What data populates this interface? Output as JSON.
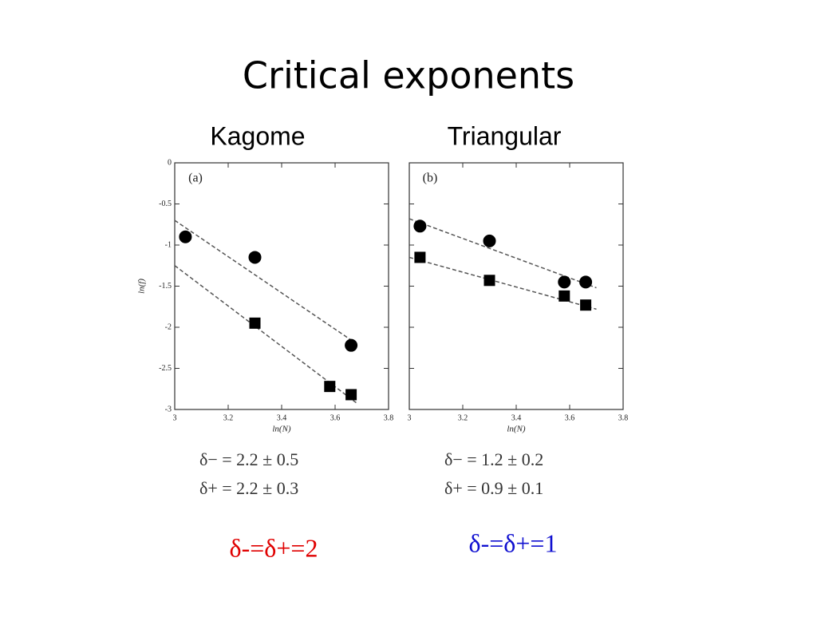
{
  "title": "Critical exponents",
  "chart_data": [
    {
      "type": "scatter",
      "title": "Kagome",
      "panel_label": "(a)",
      "xlabel": "ln(N)",
      "ylabel": "ln(f)",
      "xlim": [
        3,
        3.8
      ],
      "xticks": [
        3,
        3.2,
        3.4,
        3.6,
        3.8
      ],
      "ylim": [
        -3,
        0
      ],
      "yticks": [
        -3,
        -2.5,
        -2,
        -1.5,
        -1,
        -0.5,
        0
      ],
      "ytick_labels": true,
      "series": [
        {
          "marker": "circle",
          "color": "#000000",
          "x": [
            3.04,
            3.3,
            3.66
          ],
          "values": [
            -0.9,
            -1.15,
            -2.22
          ]
        },
        {
          "marker": "square",
          "color": "#000000",
          "x": [
            3.3,
            3.58,
            3.66
          ],
          "values": [
            -1.95,
            -2.72,
            -2.82
          ]
        }
      ],
      "fit_lines": [
        {
          "x": [
            3,
            3.68
          ],
          "values": [
            -0.7,
            -2.2
          ]
        },
        {
          "x": [
            3,
            3.68
          ],
          "values": [
            -1.25,
            -2.92
          ]
        }
      ],
      "equations": [
        "δ− = 2.2 ± 0.5",
        "δ+ = 2.2 ± 0.3"
      ],
      "conclusion": "δ-=δ+=2",
      "conclusion_color": "#e00000"
    },
    {
      "type": "scatter",
      "title": "Triangular",
      "panel_label": "(b)",
      "xlabel": "ln(N)",
      "xlim": [
        3,
        3.8
      ],
      "xticks": [
        3,
        3.2,
        3.4,
        3.6,
        3.8
      ],
      "ylim": [
        -3,
        0
      ],
      "yticks": [
        -3,
        -2.5,
        -2,
        -1.5,
        -1,
        -0.5,
        0
      ],
      "ytick_labels": false,
      "series": [
        {
          "marker": "circle",
          "color": "#000000",
          "x": [
            3.04,
            3.3,
            3.58,
            3.66
          ],
          "values": [
            -0.77,
            -0.95,
            -1.45,
            -1.45
          ]
        },
        {
          "marker": "square",
          "color": "#000000",
          "x": [
            3.04,
            3.3,
            3.58,
            3.66
          ],
          "values": [
            -1.15,
            -1.43,
            -1.62,
            -1.73
          ]
        }
      ],
      "fit_lines": [
        {
          "x": [
            3,
            3.7
          ],
          "values": [
            -0.68,
            -1.52
          ]
        },
        {
          "x": [
            3,
            3.7
          ],
          "values": [
            -1.15,
            -1.78
          ]
        }
      ],
      "equations": [
        "δ− = 1.2 ± 0.2",
        "δ+ = 0.9 ± 0.1"
      ],
      "conclusion": "δ-=δ+=1",
      "conclusion_color": "#1010d0"
    }
  ]
}
